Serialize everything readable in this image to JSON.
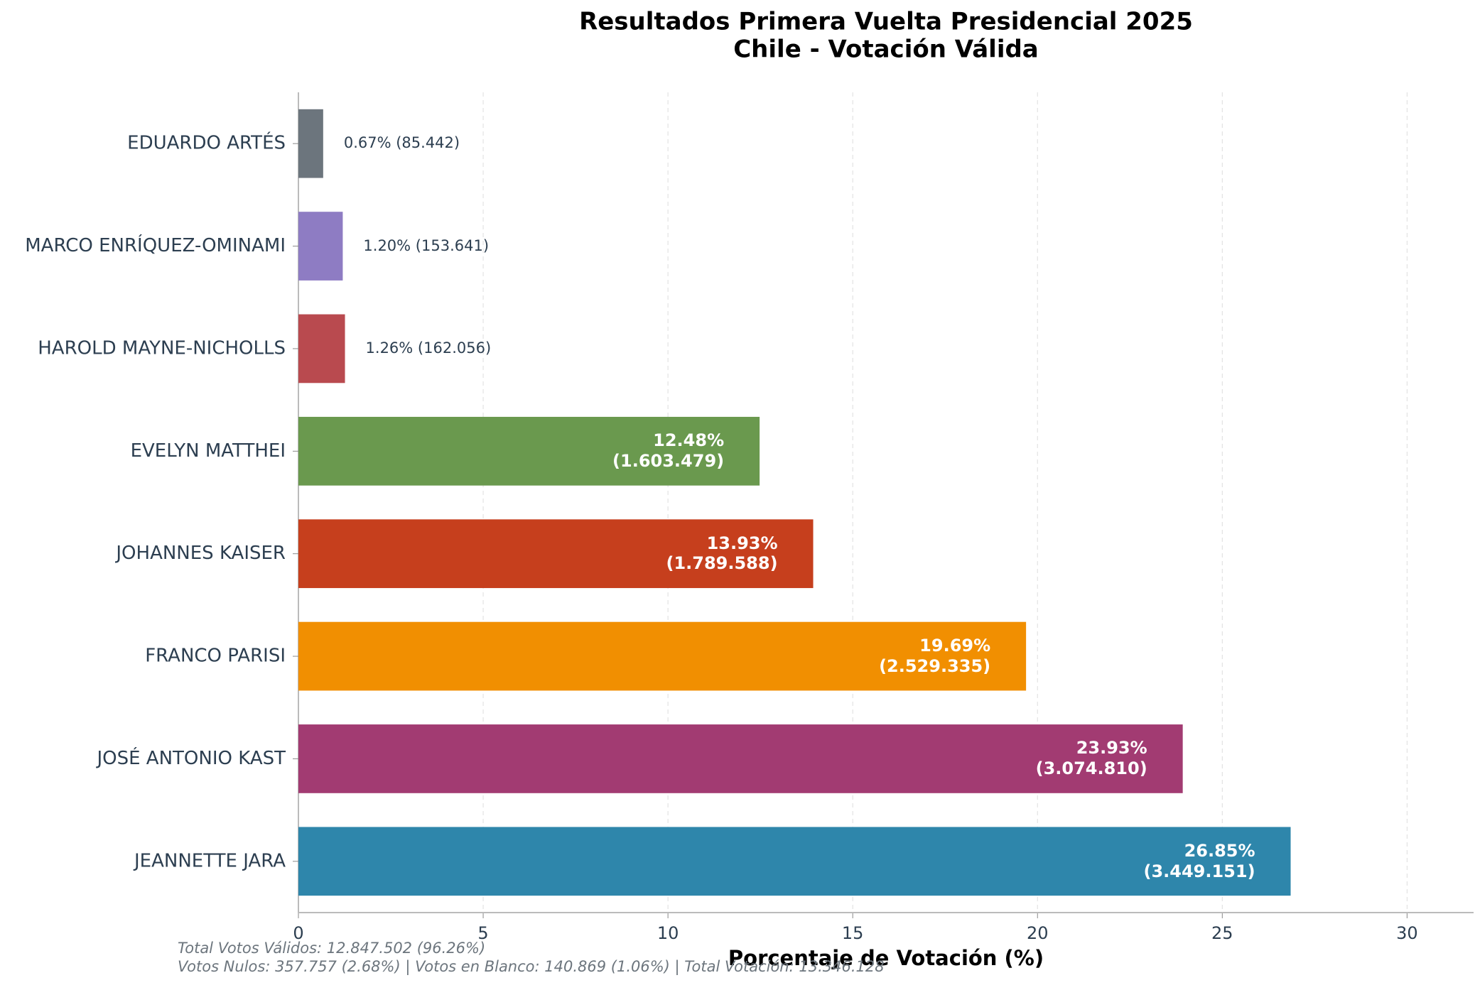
{
  "chart_data": {
    "type": "barh",
    "title": "Resultados Primera Vuelta Presidencial 2025",
    "subtitle": "Chile - Votación Válida",
    "xlabel": "Porcentaje de Votación (%)",
    "categories": [
      "EDUARDO ARTÉS",
      "MARCO ENRÍQUEZ-OMINAMI",
      "HAROLD MAYNE-NICHOLLS",
      "EVELYN MATTHEI",
      "JOHANNES KAISER",
      "FRANCO PARISI",
      "JOSÉ ANTONIO KAST",
      "JEANNETTE JARA"
    ],
    "values": [
      0.67,
      1.2,
      1.26,
      12.48,
      13.93,
      19.69,
      23.93,
      26.85
    ],
    "value_labels": [
      "0.67% (85.442)",
      "1.20% (153.641)",
      "1.26% (162.056)",
      "12.48%\n(1.603.479)",
      "13.93%\n(1.789.588)",
      "19.69%\n(2.529.335)",
      "23.93%\n(3.074.810)",
      "26.85%\n(3.449.151)"
    ],
    "colors": [
      "#6c757d",
      "#8e7cc3",
      "#b94a4f",
      "#6a994e",
      "#c63f1d",
      "#f18f01",
      "#a23b72",
      "#2e86ab"
    ],
    "xlim": [
      0,
      31.8
    ],
    "xticks": [
      0,
      5,
      10,
      15,
      20,
      25,
      30
    ],
    "grid": true,
    "notes": [
      "Total Votos Válidos: 12.847.502 (96.26%)",
      "Votos Nulos: 357.757 (2.68%) | Votos en Blanco: 140.869 (1.06%) | Total Votación: 13.346.128"
    ]
  }
}
